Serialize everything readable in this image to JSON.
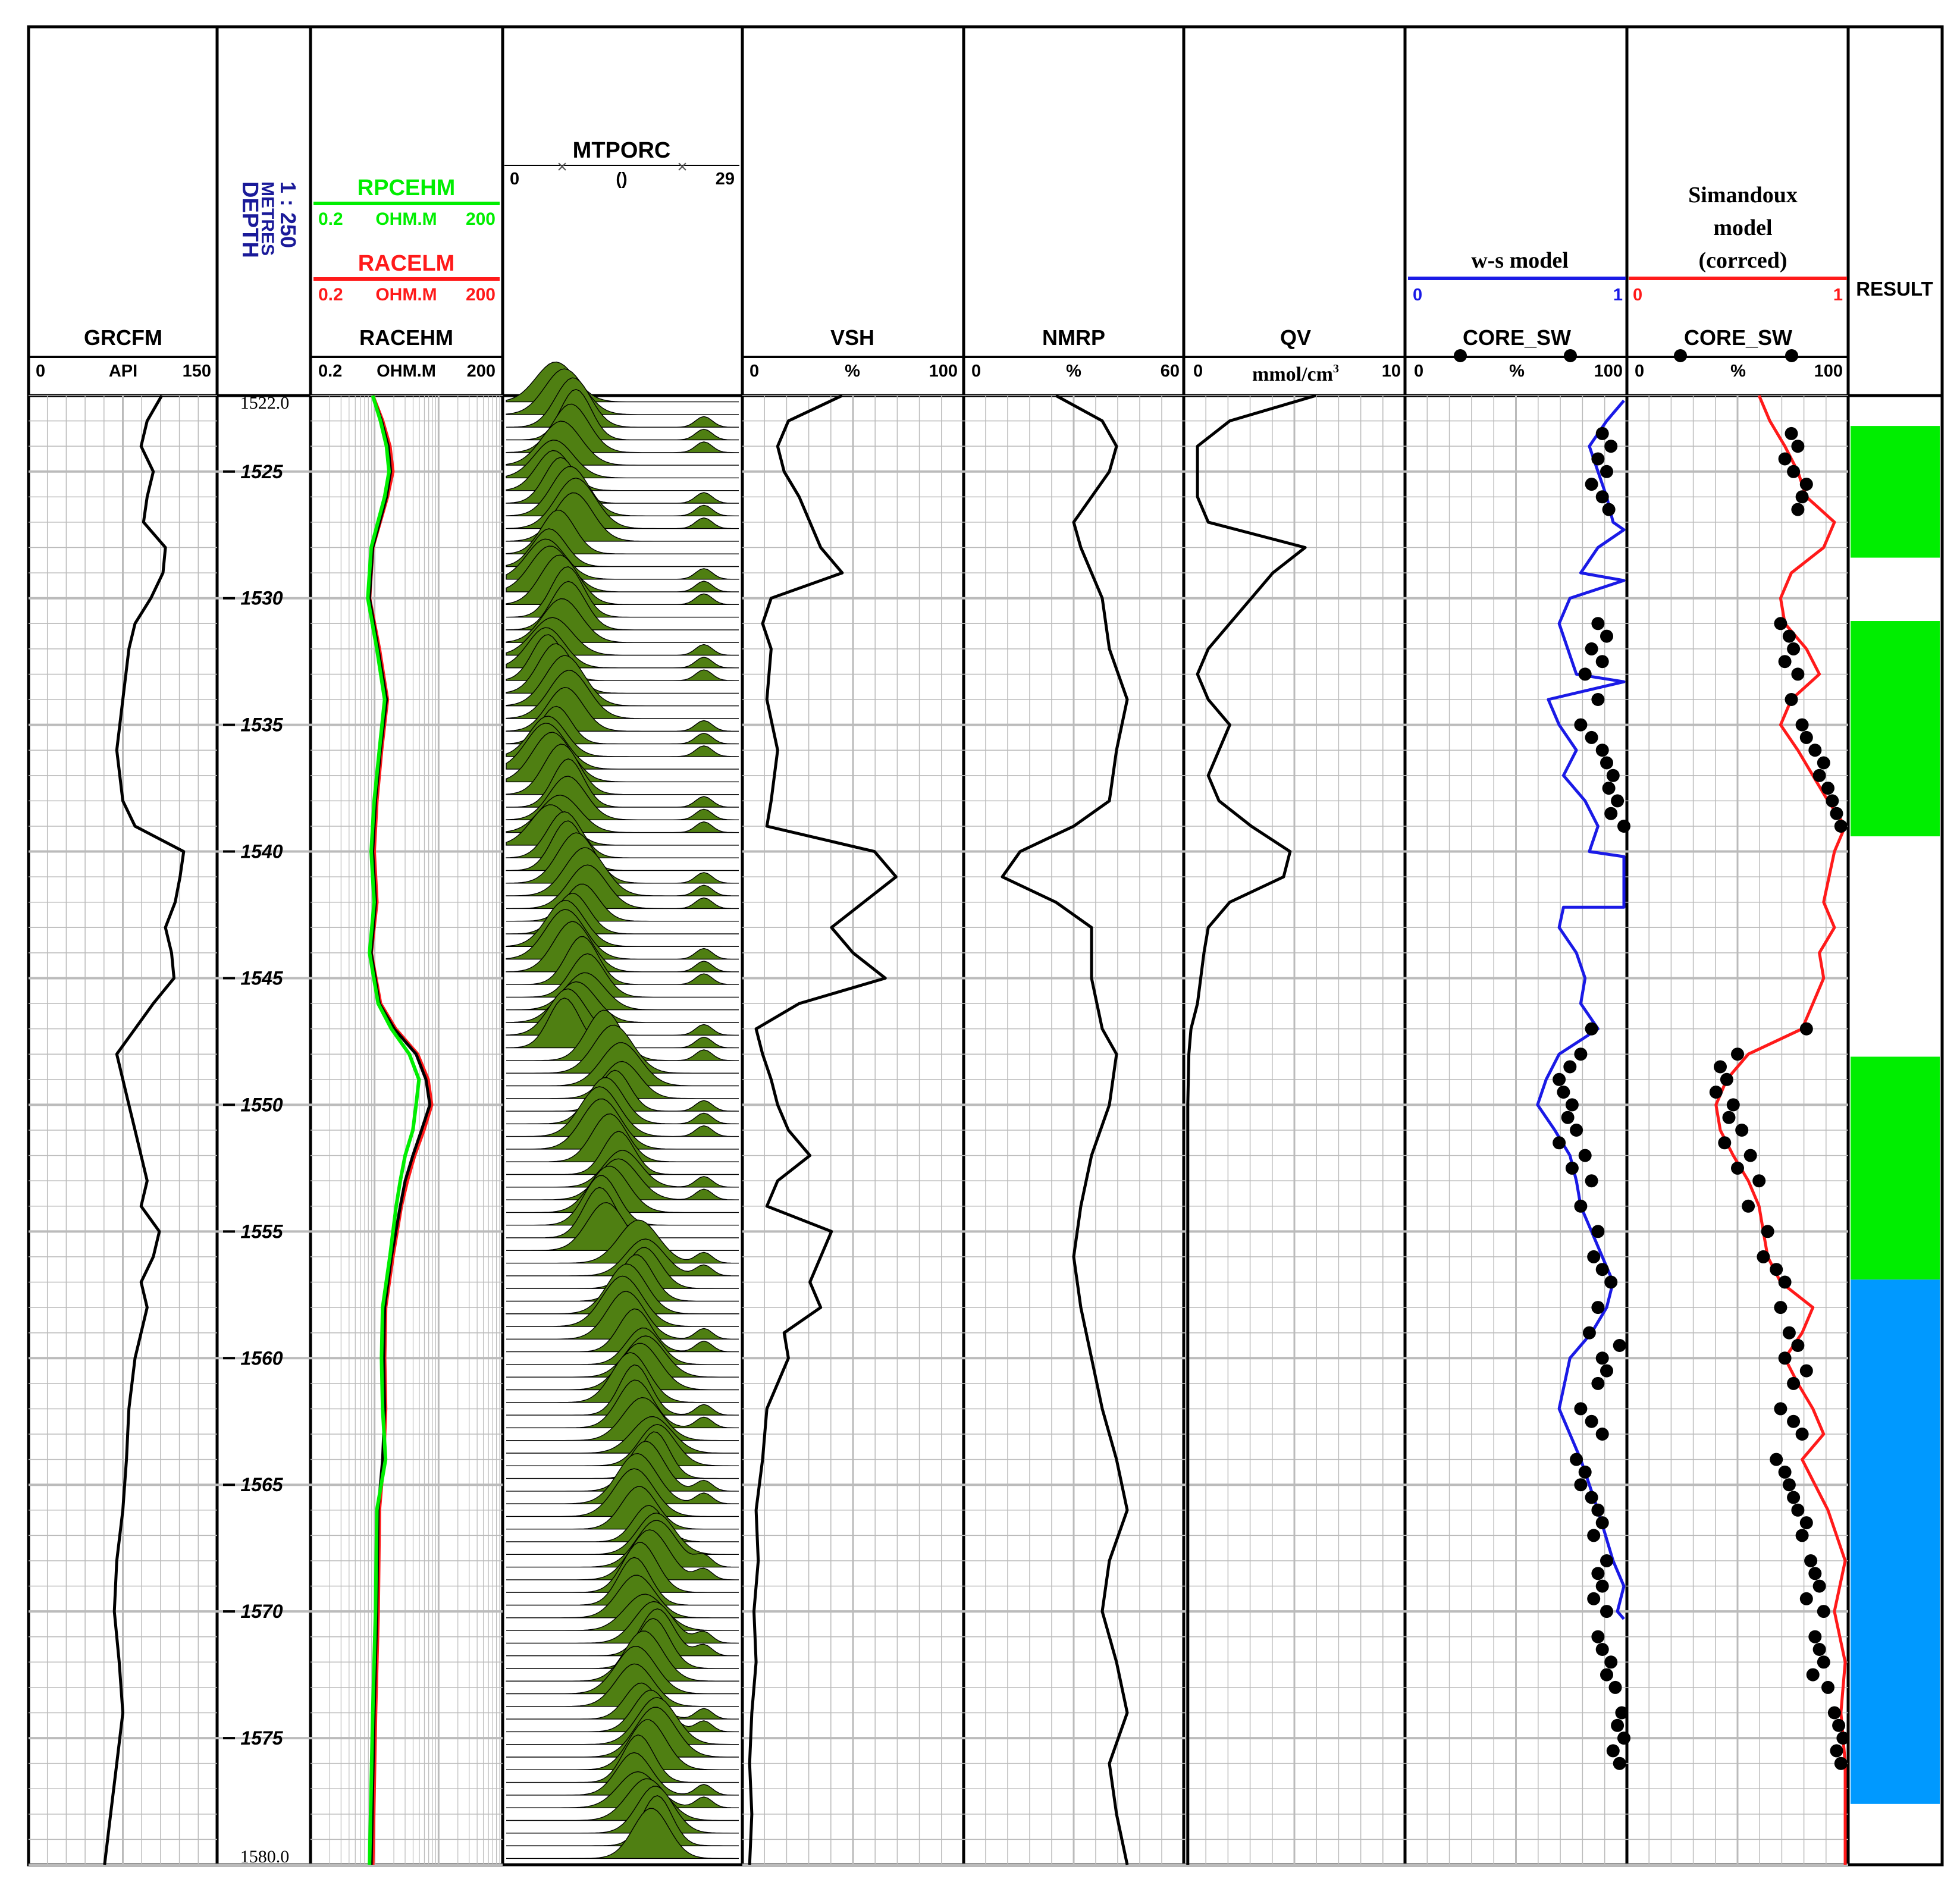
{
  "headers": {
    "gr": {
      "name": "GRCFM",
      "min": "0",
      "unit": "API",
      "max": "150"
    },
    "depth": {
      "name": "DEPTH",
      "unit": "METRES",
      "scale": "1 : 250"
    },
    "res": {
      "rpc": {
        "name": "RPCEHM",
        "min": "0.2",
        "unit": "OHM.M",
        "max": "200"
      },
      "racel": {
        "name": "RACELM",
        "min": "0.2",
        "unit": "OHM.M",
        "max": "200"
      },
      "raceh": {
        "name": "RACEHM",
        "min": "0.2",
        "unit": "OHM.M",
        "max": "200"
      }
    },
    "mtp": {
      "name": "MTPORC",
      "min": "0",
      "unit": "()",
      "max": "29"
    },
    "vsh": {
      "name": "VSH",
      "min": "0",
      "unit": "%",
      "max": "100"
    },
    "nmr": {
      "name": "NMRP",
      "min": "0",
      "unit": "%",
      "max": "60"
    },
    "qv": {
      "name": "QV",
      "min": "0",
      "unit": "mmol/cm",
      "sup": "3",
      "max": "10"
    },
    "ws": {
      "model": "w-s model",
      "line_min": "0",
      "line_max": "1",
      "core": "CORE_SW",
      "min": "0",
      "unit": "%",
      "max": "100"
    },
    "sim": {
      "model_l1": "Simandoux",
      "model_l2": "model",
      "model_l3": "(corrced)",
      "line_min": "0",
      "line_max": "1",
      "core": "CORE_SW",
      "min": "0",
      "unit": "%",
      "max": "100"
    },
    "result": {
      "name": "RESULT"
    }
  },
  "colors": {
    "black": "#000000",
    "green": "#00ee00",
    "red": "#ff1a1a",
    "blue": "#1a1ae6",
    "depth_blue": "#1a1a99",
    "spectrum": "#4f7f12",
    "zone_green": "#00ee00",
    "zone_blue": "#0099ff",
    "grid": "#bbbbbb"
  },
  "chart_data": {
    "type": "line",
    "depth_range": [
      1522.0,
      1580.0
    ],
    "depth_top_label": "1522.0",
    "depth_bottom_label": "1580.0",
    "depth_ticks": [
      "1525",
      "1530",
      "1535",
      "1540",
      "1545",
      "1550",
      "1555",
      "1560",
      "1565",
      "1570",
      "1575"
    ],
    "tracks": {
      "GRCFM": {
        "depth": [
          1522,
          1523,
          1524,
          1525,
          1526,
          1527,
          1528,
          1529,
          1530,
          1531,
          1532,
          1534,
          1536,
          1538,
          1539,
          1540,
          1541,
          1542,
          1543,
          1544,
          1545,
          1546,
          1547,
          1548,
          1549,
          1550,
          1551,
          1552,
          1553,
          1554,
          1555,
          1556,
          1557,
          1558,
          1560,
          1562,
          1564,
          1566,
          1568,
          1570,
          1572,
          1574,
          1576,
          1578,
          1580
        ],
        "values": [
          107,
          95,
          90,
          100,
          95,
          92,
          110,
          108,
          98,
          85,
          80,
          75,
          70,
          75,
          85,
          125,
          122,
          118,
          110,
          115,
          117,
          100,
          85,
          70,
          75,
          80,
          85,
          90,
          95,
          90,
          105,
          100,
          90,
          95,
          85,
          80,
          78,
          75,
          70,
          68,
          72,
          75,
          70,
          65,
          60
        ]
      },
      "RACEHM": {
        "depth": [
          1522,
          1523,
          1524,
          1525,
          1526,
          1528,
          1530,
          1532,
          1534,
          1536,
          1538,
          1540,
          1542,
          1544,
          1546,
          1547,
          1548,
          1549,
          1550,
          1551,
          1552,
          1553,
          1554,
          1556,
          1558,
          1560,
          1562,
          1564,
          1566,
          1570,
          1574,
          1580
        ],
        "values": [
          1.8,
          2.5,
          3.2,
          3.5,
          3.0,
          1.8,
          1.6,
          2.2,
          3.0,
          2.4,
          2.0,
          1.8,
          2.0,
          1.7,
          2.3,
          4.0,
          9,
          13,
          15,
          11,
          8,
          6,
          5,
          3.6,
          2.8,
          2.7,
          2.8,
          2.6,
          2.2,
          2.1,
          1.9,
          1.7
        ]
      },
      "RPCEHM": {
        "depth": [
          1522,
          1523,
          1524,
          1525,
          1526,
          1528,
          1530,
          1532,
          1534,
          1536,
          1538,
          1540,
          1542,
          1544,
          1546,
          1547,
          1548,
          1549,
          1550,
          1551,
          1552,
          1553,
          1554,
          1556,
          1558,
          1560,
          1562,
          1564,
          1566,
          1570,
          1574,
          1580
        ],
        "values": [
          1.8,
          2.4,
          3.0,
          3.3,
          2.8,
          1.7,
          1.5,
          2.1,
          2.8,
          2.3,
          1.9,
          1.7,
          1.9,
          1.6,
          2.2,
          3.6,
          7,
          10,
          9,
          8,
          6,
          5,
          4.3,
          3.4,
          2.6,
          2.5,
          2.6,
          2.9,
          2.1,
          2.0,
          1.8,
          1.6
        ]
      },
      "RACELM": {
        "depth": [
          1522,
          1523,
          1524,
          1525,
          1526,
          1528,
          1530,
          1532,
          1534,
          1536,
          1538,
          1540,
          1542,
          1544,
          1546,
          1547,
          1548,
          1549,
          1550,
          1551,
          1552,
          1553,
          1554,
          1556,
          1558,
          1560,
          1562,
          1564,
          1566,
          1570,
          1574,
          1580
        ],
        "values": [
          1.8,
          2.6,
          3.4,
          3.8,
          3.1,
          1.8,
          1.6,
          2.3,
          3.1,
          2.5,
          2.1,
          1.9,
          2.1,
          1.7,
          2.4,
          4.2,
          9.5,
          14,
          16,
          12,
          8.5,
          6.5,
          5.2,
          3.8,
          2.9,
          2.8,
          2.9,
          2.7,
          2.3,
          2.2,
          2.0,
          1.8
        ]
      },
      "VSH": {
        "depth": [
          1522,
          1523,
          1524,
          1525,
          1526,
          1527,
          1528,
          1529,
          1530,
          1531,
          1532,
          1534,
          1536,
          1538,
          1539,
          1540,
          1541,
          1542,
          1543,
          1544,
          1545,
          1546,
          1547,
          1548,
          1549,
          1550,
          1551,
          1552,
          1553,
          1554,
          1555,
          1556,
          1557,
          1558,
          1559,
          1560,
          1562,
          1564,
          1566,
          1568,
          1570,
          1572,
          1574,
          1576,
          1578,
          1580
        ],
        "values": [
          45,
          20,
          15,
          18,
          25,
          30,
          35,
          45,
          12,
          8,
          12,
          10,
          15,
          12,
          10,
          60,
          70,
          55,
          40,
          50,
          65,
          25,
          5,
          8,
          12,
          15,
          20,
          30,
          15,
          10,
          40,
          35,
          30,
          35,
          18,
          20,
          10,
          8,
          5,
          6,
          4,
          5,
          3,
          2,
          3,
          2
        ]
      },
      "NMRP": {
        "depth": [
          1522,
          1523,
          1524,
          1525,
          1526,
          1527,
          1528,
          1529,
          1530,
          1532,
          1534,
          1536,
          1538,
          1539,
          1540,
          1541,
          1542,
          1543,
          1545,
          1547,
          1548,
          1550,
          1552,
          1554,
          1556,
          1558,
          1560,
          1562,
          1564,
          1566,
          1568,
          1570,
          1572,
          1574,
          1576,
          1578,
          1580
        ],
        "values": [
          25,
          38,
          42,
          40,
          35,
          30,
          32,
          35,
          38,
          40,
          45,
          42,
          40,
          30,
          15,
          10,
          25,
          35,
          35,
          38,
          42,
          40,
          35,
          32,
          30,
          32,
          35,
          38,
          42,
          45,
          40,
          38,
          42,
          45,
          40,
          42,
          45
        ]
      },
      "QV": {
        "depth": [
          1522,
          1523,
          1524,
          1525,
          1526,
          1527,
          1528,
          1529,
          1530,
          1531,
          1532,
          1533,
          1534,
          1535,
          1536,
          1537,
          1538,
          1539,
          1540,
          1541,
          1542,
          1543,
          1544,
          1546,
          1547,
          1548,
          1550,
          1555,
          1560,
          1565,
          1570,
          1575,
          1580
        ],
        "values": [
          6,
          2,
          0.5,
          0.5,
          0.5,
          1,
          5.5,
          4,
          3,
          2,
          1,
          0.5,
          1,
          2,
          1.5,
          1,
          1.5,
          3,
          4.8,
          4.5,
          2,
          1,
          0.8,
          0.5,
          0.2,
          0.1,
          0.05,
          0.05,
          0.05,
          0.05,
          0.05,
          0.05,
          0.05
        ]
      },
      "SW_WS": {
        "depth": [
          1522.2,
          1523,
          1524,
          1525,
          1526,
          1527,
          1527.3,
          1527.3,
          1528,
          1529,
          1529.3,
          1529.3,
          1530,
          1531,
          1532,
          1533,
          1533.3,
          1533.3,
          1534,
          1535,
          1536,
          1537,
          1538,
          1539,
          1540,
          1540.2,
          1542.2,
          1542.2,
          1543,
          1544,
          1545,
          1546,
          1547,
          1548,
          1549,
          1550,
          1551,
          1552,
          1553,
          1554,
          1555,
          1556,
          1557,
          1558,
          1559,
          1560,
          1562,
          1564,
          1566,
          1568,
          1569,
          1570,
          1570.3
        ],
        "values": [
          100,
          92,
          84,
          88,
          92,
          95,
          100,
          100,
          88,
          80,
          100,
          100,
          75,
          70,
          74,
          78,
          100,
          100,
          65,
          70,
          78,
          72,
          82,
          88,
          84,
          100,
          100,
          72,
          70,
          78,
          82,
          80,
          88,
          70,
          64,
          60,
          68,
          75,
          78,
          80,
          85,
          90,
          95,
          92,
          85,
          75,
          70,
          80,
          88,
          95,
          100,
          97,
          100
        ]
      },
      "SW_SIM": {
        "depth": [
          1522,
          1523,
          1524,
          1525,
          1526,
          1527,
          1528,
          1529,
          1530,
          1531,
          1532,
          1533,
          1534,
          1535,
          1536,
          1537,
          1538,
          1539,
          1540,
          1542,
          1543,
          1544,
          1545,
          1546,
          1547,
          1548,
          1549,
          1550,
          1551,
          1552,
          1553,
          1554,
          1555,
          1556,
          1557,
          1558,
          1559,
          1560,
          1561,
          1562,
          1563,
          1564,
          1566,
          1568,
          1570,
          1572,
          1574,
          1576,
          1578,
          1580
        ],
        "values": [
          60,
          65,
          72,
          78,
          82,
          95,
          90,
          75,
          70,
          72,
          82,
          88,
          75,
          70,
          78,
          85,
          92,
          100,
          95,
          90,
          95,
          88,
          90,
          85,
          80,
          55,
          45,
          40,
          42,
          48,
          55,
          60,
          62,
          64,
          70,
          85,
          80,
          72,
          78,
          85,
          90,
          80,
          92,
          100,
          95,
          100,
          98,
          100,
          100,
          100
        ]
      },
      "CORE_SW_WS": {
        "depth": [
          1523.5,
          1524,
          1524.5,
          1525,
          1525.5,
          1526,
          1526.5,
          1531,
          1531.5,
          1532,
          1532.5,
          1533,
          1534,
          1535,
          1535.5,
          1536,
          1536.5,
          1537,
          1537.5,
          1538,
          1538.5,
          1539,
          1547,
          1548,
          1548.5,
          1549,
          1549.5,
          1550,
          1550.5,
          1551,
          1551.5,
          1552,
          1552.5,
          1553,
          1554,
          1555,
          1556,
          1556.5,
          1557,
          1558,
          1559,
          1559.5,
          1560,
          1560.5,
          1561,
          1562,
          1562.5,
          1563,
          1564,
          1564.5,
          1565,
          1565.5,
          1566,
          1566.5,
          1567,
          1568,
          1568.5,
          1569,
          1569.5,
          1570,
          1571,
          1571.5,
          1572,
          1572.5,
          1573,
          1574,
          1574.5,
          1575,
          1575.5,
          1576
        ],
        "values": [
          90,
          94,
          88,
          92,
          85,
          90,
          93,
          88,
          92,
          85,
          90,
          82,
          88,
          80,
          85,
          90,
          92,
          95,
          93,
          97,
          94,
          100,
          85,
          80,
          75,
          70,
          72,
          76,
          74,
          78,
          70,
          82,
          76,
          85,
          80,
          88,
          86,
          90,
          94,
          88,
          84,
          98,
          90,
          92,
          88,
          80,
          85,
          90,
          78,
          82,
          80,
          85,
          88,
          90,
          86,
          92,
          88,
          90,
          86,
          92,
          88,
          90,
          94,
          92,
          96,
          99,
          97,
          100,
          95,
          98
        ]
      },
      "CORE_SW_SIM": {
        "depth": [
          1523.5,
          1524,
          1524.5,
          1525,
          1525.5,
          1526,
          1526.5,
          1531,
          1531.5,
          1532,
          1532.5,
          1533,
          1534,
          1535,
          1535.5,
          1536,
          1536.5,
          1537,
          1537.5,
          1538,
          1538.5,
          1539,
          1547,
          1548,
          1548.5,
          1549,
          1549.5,
          1550,
          1550.5,
          1551,
          1551.5,
          1552,
          1552.5,
          1553,
          1554,
          1555,
          1556,
          1556.5,
          1557,
          1558,
          1559,
          1559.5,
          1560,
          1560.5,
          1561,
          1562,
          1562.5,
          1563,
          1564,
          1564.5,
          1565,
          1565.5,
          1566,
          1566.5,
          1567,
          1568,
          1568.5,
          1569,
          1569.5,
          1570,
          1571,
          1571.5,
          1572,
          1572.5,
          1573,
          1574,
          1574.5,
          1575,
          1575.5,
          1576
        ],
        "values": [
          75,
          78,
          72,
          76,
          82,
          80,
          78,
          70,
          74,
          76,
          72,
          78,
          75,
          80,
          82,
          86,
          90,
          88,
          92,
          94,
          96,
          98,
          82,
          50,
          42,
          45,
          40,
          48,
          46,
          52,
          44,
          56,
          50,
          60,
          55,
          64,
          62,
          68,
          72,
          70,
          74,
          78,
          72,
          82,
          76,
          70,
          76,
          80,
          68,
          72,
          74,
          76,
          78,
          82,
          80,
          84,
          86,
          88,
          82,
          90,
          86,
          88,
          90,
          85,
          92,
          95,
          97,
          99,
          96,
          98
        ]
      },
      "RESULT_ZONES": [
        {
          "top": 1523.2,
          "base": 1528.4,
          "color": "#00ee00"
        },
        {
          "top": 1530.9,
          "base": 1539.4,
          "color": "#00ee00"
        },
        {
          "top": 1548.1,
          "base": 1556.9,
          "color": "#00ee00"
        },
        {
          "top": 1556.9,
          "base": 1577.6,
          "color": "#0099ff"
        }
      ]
    }
  }
}
